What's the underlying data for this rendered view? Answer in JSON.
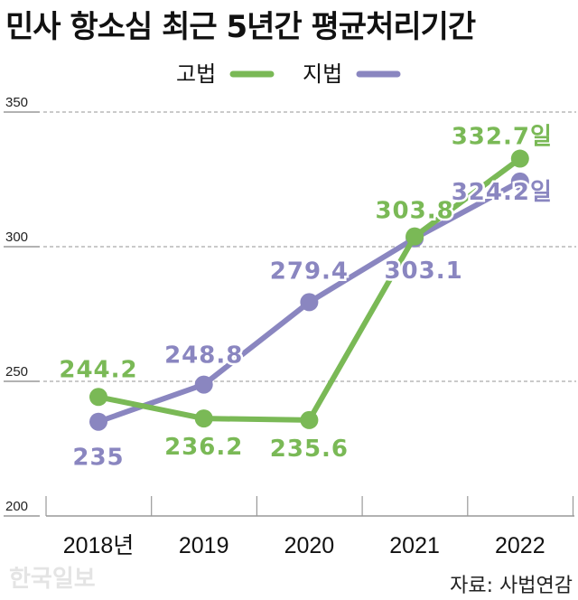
{
  "title": "민사 항소심 최근 5년간 평균처리기간",
  "watermark": "한국일보",
  "source": "자료: 사법연감",
  "chart_data": {
    "type": "line",
    "title": "민사 항소심 최근 5년간 평균처리기간",
    "categories": [
      "2018년",
      "2019",
      "2020",
      "2021",
      "2022"
    ],
    "ylim": [
      200,
      350
    ],
    "yticks": [
      "200",
      "250",
      "300",
      "350"
    ],
    "grid": true,
    "legend_position": "top-center",
    "series": [
      {
        "name": "고법",
        "color": "#7ab956",
        "values": [
          244.2,
          236.2,
          235.6,
          303.8,
          332.7
        ],
        "labels": [
          "244.2",
          "236.2",
          "235.6",
          "303.8",
          "332.7일"
        ]
      },
      {
        "name": "지법",
        "color": "#8a86c0",
        "values": [
          235,
          248.8,
          279.4,
          303.1,
          324.2
        ],
        "labels": [
          "235",
          "248.8",
          "279.4",
          "303.1",
          "324.2일"
        ]
      }
    ]
  }
}
